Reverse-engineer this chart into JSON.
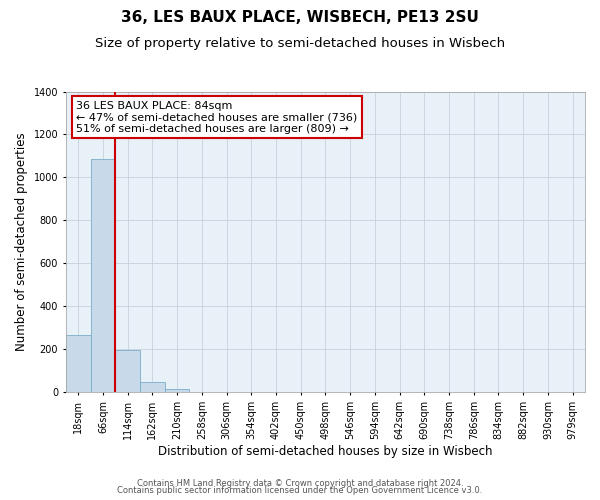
{
  "title": "36, LES BAUX PLACE, WISBECH, PE13 2SU",
  "subtitle": "Size of property relative to semi-detached houses in Wisbech",
  "xlabel": "Distribution of semi-detached houses by size in Wisbech",
  "ylabel": "Number of semi-detached properties",
  "bin_labels": [
    "18sqm",
    "66sqm",
    "114sqm",
    "162sqm",
    "210sqm",
    "258sqm",
    "306sqm",
    "354sqm",
    "402sqm",
    "450sqm",
    "498sqm",
    "546sqm",
    "594sqm",
    "642sqm",
    "690sqm",
    "738sqm",
    "786sqm",
    "834sqm",
    "882sqm",
    "930sqm",
    "979sqm"
  ],
  "bin_values": [
    265,
    1085,
    195,
    48,
    15,
    0,
    0,
    0,
    0,
    0,
    0,
    0,
    0,
    0,
    0,
    0,
    0,
    0,
    0,
    0,
    0
  ],
  "bar_color": "#c8daea",
  "bar_edge_color": "#7aaec8",
  "ylim": [
    0,
    1400
  ],
  "yticks": [
    0,
    200,
    400,
    600,
    800,
    1000,
    1200,
    1400
  ],
  "property_line_x": 1.5,
  "annotation_title": "36 LES BAUX PLACE: 84sqm",
  "annotation_line1": "← 47% of semi-detached houses are smaller (736)",
  "annotation_line2": "51% of semi-detached houses are larger (809) →",
  "red_line_color": "#cc0000",
  "annotation_box_facecolor": "#ffffff",
  "annotation_box_edgecolor": "#cc0000",
  "footer_line1": "Contains HM Land Registry data © Crown copyright and database right 2024.",
  "footer_line2": "Contains public sector information licensed under the Open Government Licence v3.0.",
  "background_color": "#ffffff",
  "plot_bg_color": "#e8f0f8",
  "grid_color": "#c8d0da",
  "title_fontsize": 11,
  "subtitle_fontsize": 9.5,
  "axis_label_fontsize": 8.5,
  "tick_fontsize": 7,
  "annotation_fontsize": 8,
  "footer_fontsize": 6
}
